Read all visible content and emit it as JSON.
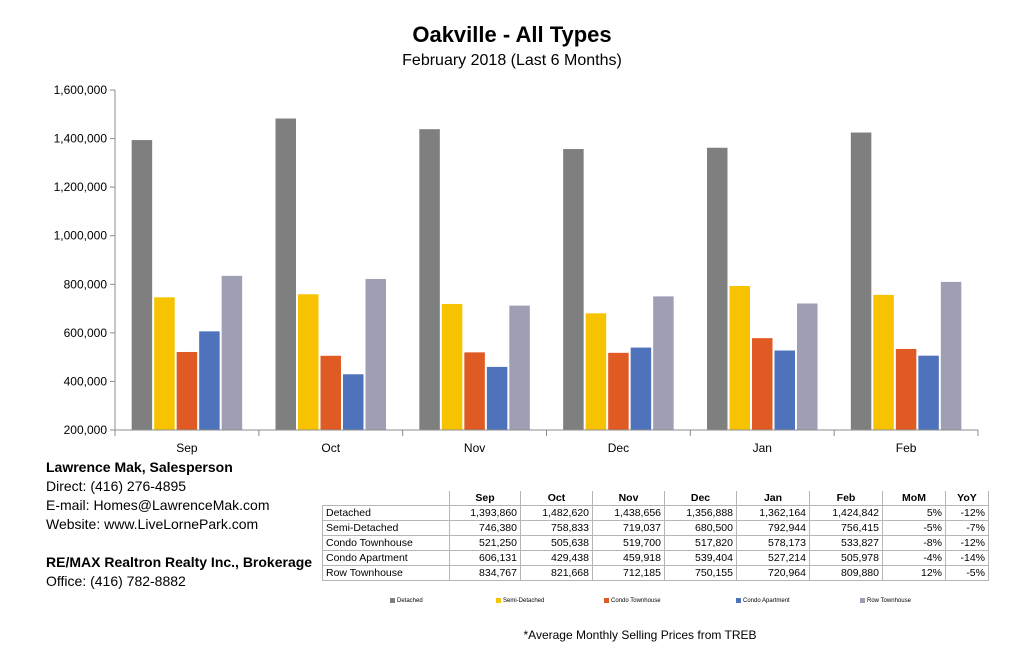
{
  "chart_data": {
    "type": "bar",
    "title": "Oakville - All Types",
    "subtitle": "February 2018 (Last 6 Months)",
    "categories": [
      "Sep",
      "Oct",
      "Nov",
      "Dec",
      "Jan",
      "Feb"
    ],
    "ylim": [
      200000,
      1600000
    ],
    "yticks": [
      "200,000",
      "400,000",
      "600,000",
      "800,000",
      "1,000,000",
      "1,200,000",
      "1,400,000",
      "1,600,000"
    ],
    "grid": false,
    "legend_placement": "bottom",
    "series": [
      {
        "name": "Detached",
        "color": "#7f7f7f",
        "values": [
          1393860,
          1482620,
          1438656,
          1356888,
          1362164,
          1424842
        ]
      },
      {
        "name": "Semi-Detached",
        "color": "#f7c300",
        "values": [
          746380,
          758833,
          719037,
          680500,
          792944,
          756415
        ]
      },
      {
        "name": "Condo Townhouse",
        "color": "#e05a24",
        "values": [
          521250,
          505638,
          519700,
          517820,
          578173,
          533827
        ]
      },
      {
        "name": "Condo Apartment",
        "color": "#4f72bd",
        "values": [
          606131,
          429438,
          459918,
          539404,
          527214,
          505978
        ]
      },
      {
        "name": "Row Townhouse",
        "color": "#9e9fb4",
        "values": [
          834767,
          821668,
          712185,
          750155,
          720964,
          809880
        ]
      }
    ]
  },
  "contact": {
    "name": "Lawrence Mak, Salesperson",
    "direct": "Direct:  (416) 276-4895",
    "email": "E-mail:  Homes@LawrenceMak.com",
    "website": "Website: www.LiveLornePark.com",
    "brokerage": "RE/MAX Realtron Realty Inc., Brokerage",
    "office": "Office: (416) 782-8882"
  },
  "table": {
    "headers": [
      "Sep",
      "Oct",
      "Nov",
      "Dec",
      "Jan",
      "Feb",
      "MoM",
      "YoY"
    ],
    "rows": [
      {
        "label": "Detached",
        "cells": [
          "1,393,860",
          "1,482,620",
          "1,438,656",
          "1,356,888",
          "1,362,164",
          "1,424,842",
          "5%",
          "-12%"
        ]
      },
      {
        "label": "Semi-Detached",
        "cells": [
          "746,380",
          "758,833",
          "719,037",
          "680,500",
          "792,944",
          "756,415",
          "-5%",
          "-7%"
        ]
      },
      {
        "label": "Condo Townhouse",
        "cells": [
          "521,250",
          "505,638",
          "519,700",
          "517,820",
          "578,173",
          "533,827",
          "-8%",
          "-12%"
        ]
      },
      {
        "label": "Condo Apartment",
        "cells": [
          "606,131",
          "429,438",
          "459,918",
          "539,404",
          "527,214",
          "505,978",
          "-4%",
          "-14%"
        ]
      },
      {
        "label": "Row Townhouse",
        "cells": [
          "834,767",
          "821,668",
          "712,185",
          "750,155",
          "720,964",
          "809,880",
          "12%",
          "-5%"
        ]
      }
    ]
  },
  "footnote": "*Average Monthly Selling Prices  from TREB"
}
